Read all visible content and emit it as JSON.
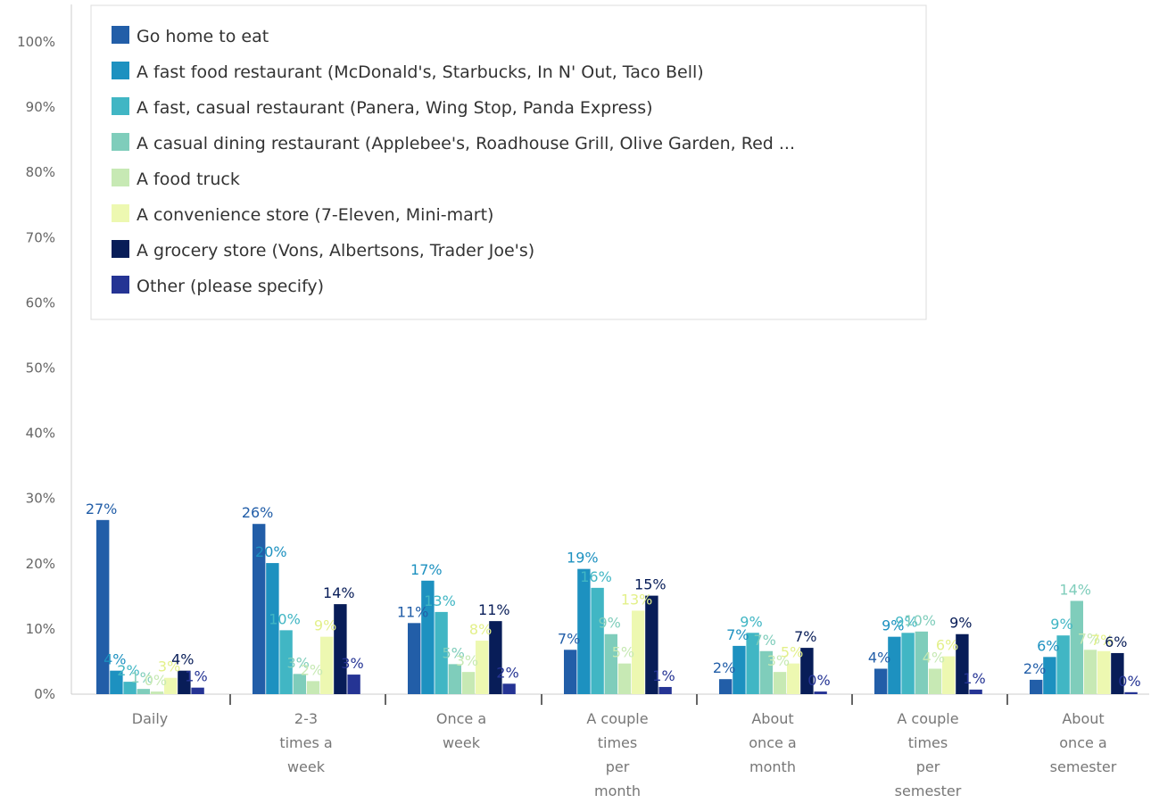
{
  "chart_data": {
    "type": "bar",
    "categories": [
      [
        "Daily"
      ],
      [
        "2-3",
        "times a",
        "week"
      ],
      [
        "Once a",
        "week"
      ],
      [
        "A couple",
        "times",
        "per",
        "month"
      ],
      [
        "About",
        "once a",
        "month"
      ],
      [
        "A couple",
        "times",
        "per",
        "semester"
      ],
      [
        "About",
        "once a",
        "semester"
      ]
    ],
    "ylim": [
      0,
      100
    ],
    "yticks": [
      0,
      10,
      20,
      30,
      40,
      50,
      60,
      70,
      80,
      90,
      100
    ],
    "ytick_labels": [
      "0%",
      "10%",
      "20%",
      "30%",
      "40%",
      "50%",
      "60%",
      "70%",
      "80%",
      "90%",
      "100%"
    ],
    "grid": false,
    "legend_position": "top-left",
    "series": [
      {
        "name": "Go home to eat",
        "color": "#225ea8",
        "values": [
          26.7,
          26.1,
          10.9,
          6.8,
          2.3,
          3.9,
          2.2
        ]
      },
      {
        "name": "A fast food restaurant (McDonald's, Starbucks, In N' Out, Taco Bell)",
        "color": "#1d91c0",
        "values": [
          3.6,
          20.1,
          17.4,
          19.2,
          7.4,
          8.8,
          5.7
        ]
      },
      {
        "name": "A fast, casual restaurant (Panera, Wing Stop, Panda Express)",
        "color": "#41b6c4",
        "values": [
          1.9,
          9.8,
          12.6,
          16.3,
          9.4,
          9.4,
          9.0
        ]
      },
      {
        "name": "A casual dining restaurant (Applebee's, Roadhouse Grill, Olive Garden, Red ...",
        "color": "#7fcdbb",
        "values": [
          0.8,
          3.1,
          4.6,
          9.2,
          6.6,
          9.6,
          14.3
        ]
      },
      {
        "name": "A food truck",
        "color": "#c7e9b4",
        "values": [
          0.4,
          2.0,
          3.4,
          4.7,
          3.4,
          3.9,
          6.8
        ]
      },
      {
        "name": "A convenience store (7-Eleven, Mini-mart)",
        "color": "#edf8b1",
        "values": [
          2.5,
          8.8,
          8.2,
          12.8,
          4.7,
          5.8,
          6.6
        ]
      },
      {
        "name": "A grocery store (Vons, Albertsons, Trader Joe's)",
        "color": "#081d58",
        "values": [
          3.6,
          13.8,
          11.2,
          15.1,
          7.1,
          9.2,
          6.3
        ]
      },
      {
        "name": "Other (please specify)",
        "color": "#253494",
        "values": [
          1.0,
          3.0,
          1.6,
          1.1,
          0.4,
          0.7,
          0.3
        ]
      }
    ],
    "data_labels": [
      [
        "27%",
        "4%",
        "2%",
        "1%",
        "0%",
        "3%",
        "4%",
        "1%"
      ],
      [
        "26%",
        "20%",
        "10%",
        "3%",
        "2%",
        "9%",
        "14%",
        "3%"
      ],
      [
        "11%",
        "17%",
        "13%",
        "5%",
        "3%",
        "8%",
        "11%",
        "2%"
      ],
      [
        "7%",
        "19%",
        "16%",
        "9%",
        "5%",
        "13%",
        "15%",
        "1%"
      ],
      [
        "2%",
        "7%",
        "9%",
        "7%",
        "3%",
        "5%",
        "7%",
        "0%"
      ],
      [
        "4%",
        "9%",
        "9%",
        "10%",
        "4%",
        "6%",
        "9%",
        "1%"
      ],
      [
        "2%",
        "6%",
        "9%",
        "14%",
        "7%",
        "7%",
        "6%",
        "0%"
      ]
    ],
    "label_colors": [
      "#225ea8",
      "#1d91c0",
      "#41b6c4",
      "#7fcdbb",
      "#c7e9b4",
      "#e3f08a",
      "#081d58",
      "#253494"
    ]
  }
}
